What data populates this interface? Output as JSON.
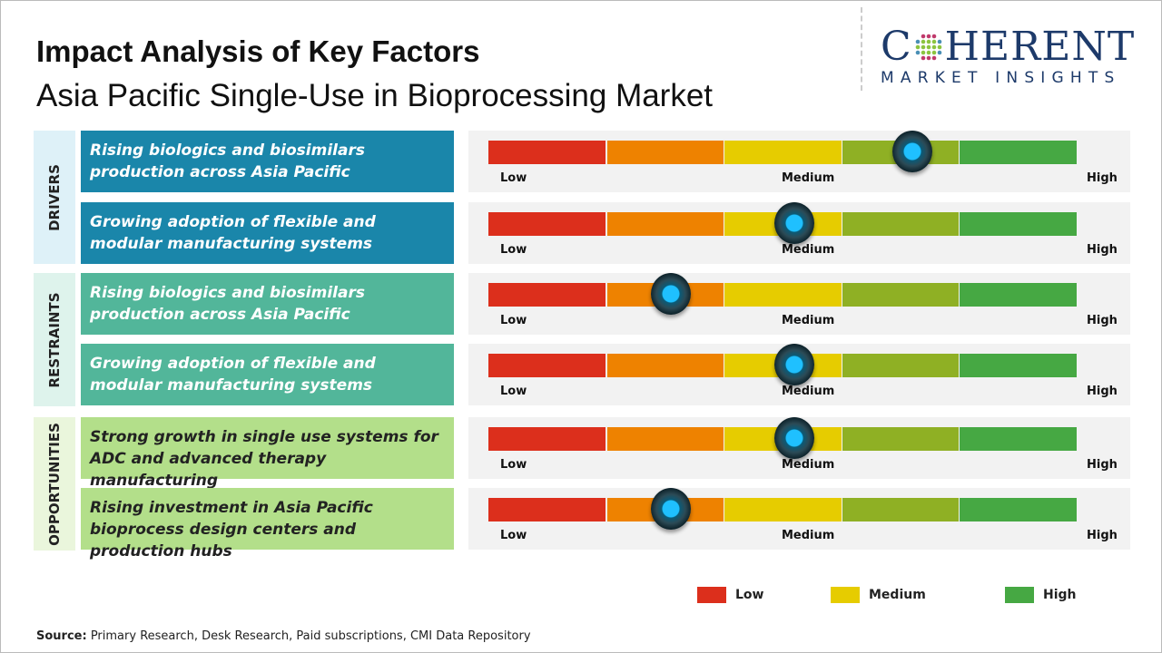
{
  "header": {
    "title": "Impact Analysis of Key Factors",
    "subtitle": "Asia Pacific Single-Use in Bioprocessing Market"
  },
  "logo": {
    "top": "COHERENT",
    "bottom": "MARKET INSIGHTS"
  },
  "colors": {
    "low": "#dc2f1c",
    "low_medium": "#ee8200",
    "medium": "#e6cc00",
    "medium_high": "#8fb024",
    "high": "#46a843",
    "drivers": "#1a86aa",
    "restraints": "#52b69a",
    "opportunities": "#b3df8a",
    "knob": "#1fc0ff"
  },
  "scale_labels": {
    "low": "Low",
    "medium": "Medium",
    "high": "High"
  },
  "chart_data": {
    "type": "gauge",
    "scale": [
      "Low",
      "Medium",
      "High"
    ],
    "groups": [
      {
        "name": "DRIVERS",
        "factors": [
          {
            "label": "Rising biologics and biosimilars production across Asia Pacific",
            "impact_percent": 72
          },
          {
            "label": "Growing adoption of flexible and modular manufacturing systems",
            "impact_percent": 52
          }
        ]
      },
      {
        "name": "RESTRAINTS",
        "factors": [
          {
            "label": "Rising biologics and biosimilars production across Asia Pacific",
            "impact_percent": 31
          },
          {
            "label": "Growing adoption of flexible and modular manufacturing systems",
            "impact_percent": 52
          }
        ]
      },
      {
        "name": "OPPORTUNITIES",
        "factors": [
          {
            "label": "Strong growth in single use systems for ADC and advanced therapy manufacturing",
            "impact_percent": 52
          },
          {
            "label": "Rising investment in Asia Pacific bioprocess design centers and production hubs",
            "impact_percent": 31
          }
        ]
      }
    ],
    "legend": [
      "Low",
      "Medium",
      "High"
    ]
  },
  "source": {
    "label": "Source:",
    "text": " Primary Research, Desk Research, Paid subscriptions, CMI Data Repository"
  }
}
